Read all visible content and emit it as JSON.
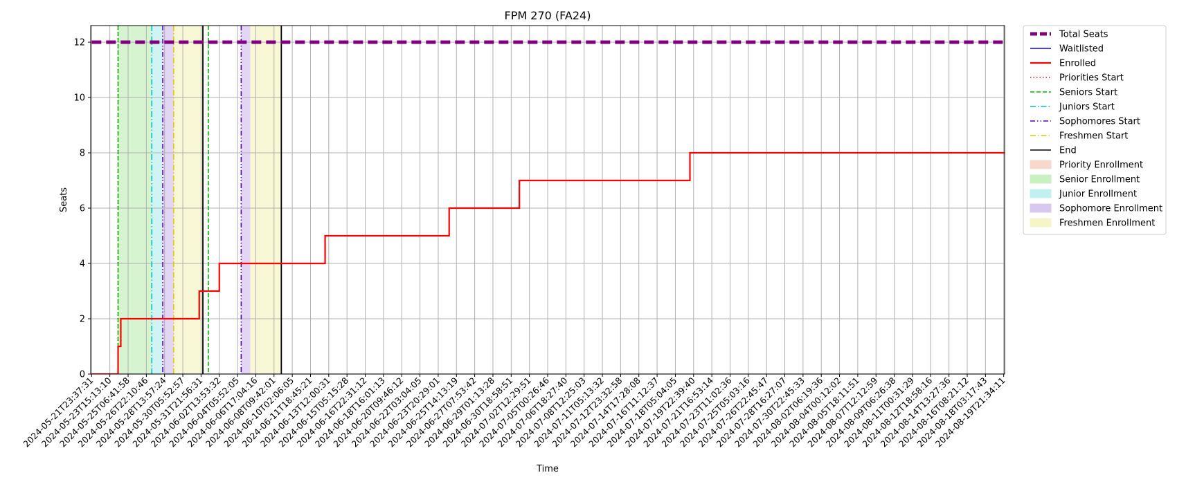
{
  "chart_data": {
    "type": "line",
    "title": "FPM 270 (FA24)",
    "xlabel": "Time",
    "ylabel": "Seats",
    "ylim": [
      0,
      12.6
    ],
    "yticks": [
      0,
      2,
      4,
      6,
      8,
      10,
      12
    ],
    "grid": true,
    "legend_position": "outside-right",
    "x_ticks": [
      "2024-05-21T23:37:31",
      "2024-05-23T15:13:10",
      "2024-05-25T06:41:58",
      "2024-05-26T22:10:46",
      "2024-05-28T13:57:24",
      "2024-05-30T05:52:57",
      "2024-05-31T21:56:31",
      "2024-06-02T13:53:32",
      "2024-06-04T05:52:05",
      "2024-06-06T17:04:16",
      "2024-06-08T09:42:01",
      "2024-06-10T02:06:05",
      "2024-06-11T18:45:21",
      "2024-06-13T12:00:31",
      "2024-06-15T05:15:28",
      "2024-06-16T22:31:12",
      "2024-06-18T16:01:13",
      "2024-06-20T09:46:12",
      "2024-06-22T03:04:05",
      "2024-06-23T20:29:01",
      "2024-06-25T14:13:19",
      "2024-06-27T07:53:42",
      "2024-06-29T01:13:28",
      "2024-06-30T18:58:51",
      "2024-07-02T12:29:51",
      "2024-07-05T00:26:46",
      "2024-07-06T18:27:40",
      "2024-07-08T12:25:03",
      "2024-07-11T05:13:32",
      "2024-07-12T23:32:58",
      "2024-07-14T17:28:08",
      "2024-07-16T11:12:37",
      "2024-07-18T05:04:05",
      "2024-07-19T22:39:40",
      "2024-07-21T16:53:14",
      "2024-07-23T11:02:36",
      "2024-07-25T05:03:16",
      "2024-07-26T22:45:47",
      "2024-07-28T16:27:07",
      "2024-07-30T22:45:33",
      "2024-08-02T06:19:36",
      "2024-08-04T00:12:02",
      "2024-08-05T18:11:51",
      "2024-08-07T12:12:59",
      "2024-08-09T06:26:38",
      "2024-08-11T00:31:29",
      "2024-08-12T18:58:16",
      "2024-08-14T13:27:36",
      "2024-08-16T08:21:12",
      "2024-08-18T03:17:43",
      "2024-08-19T21:34:11"
    ],
    "series": [
      {
        "name": "Total Seats",
        "style": "dashed",
        "color": "#800080",
        "x": [
          0,
          50.3
        ],
        "y": [
          12,
          12
        ]
      },
      {
        "name": "Waitlisted",
        "style": "solid",
        "color": "#0000ff",
        "x": [
          0,
          50.3
        ],
        "y": [
          0,
          0
        ]
      },
      {
        "name": "Enrolled",
        "style": "step",
        "color": "#ff0000",
        "x": [
          0,
          1.45,
          1.6,
          5.9,
          7.0,
          12.8,
          19.6,
          23.45,
          32.8,
          50.3
        ],
        "y": [
          0,
          1,
          2,
          3,
          4,
          5,
          6,
          7,
          8,
          8
        ]
      }
    ],
    "vlines": [
      {
        "name": "Priorities Start",
        "style": "dotted",
        "color": "#ff0000",
        "x": 1.45
      },
      {
        "name": "Seniors Start",
        "style": "dashed",
        "color": "#00bb00",
        "x": 1.45
      },
      {
        "name": "Juniors Start",
        "style": "dashdot",
        "color": "#00bfbf",
        "x": 3.3
      },
      {
        "name": "Sophomores Start",
        "style": "dashdotdot",
        "color": "#5500cc",
        "x": 3.9
      },
      {
        "name": "Freshmen Start",
        "style": "dashdot",
        "color": "#ddcc00",
        "x": 4.5
      },
      {
        "name": "End",
        "style": "solid",
        "color": "#000000",
        "x": 6.1
      },
      {
        "name": "Seniors Start",
        "style": "dashed",
        "color": "#00bb00",
        "x": 6.4
      },
      {
        "name": "Sophomores Start",
        "style": "dashdotdot",
        "color": "#5500cc",
        "x": 8.2
      },
      {
        "name": "End",
        "style": "solid",
        "color": "#000000",
        "x": 10.4
      }
    ],
    "regions": [
      {
        "name": "Senior Enrollment",
        "color": "#c8f0c0",
        "x0": 1.45,
        "x1": 3.3
      },
      {
        "name": "Junior Enrollment",
        "color": "#c0f0f0",
        "x0": 3.3,
        "x1": 3.9
      },
      {
        "name": "Sophomore Enrollment",
        "color": "#d8c8f0",
        "x0": 3.9,
        "x1": 4.5
      },
      {
        "name": "Freshmen Enrollment",
        "color": "#f5f5c8",
        "x0": 4.5,
        "x1": 6.1
      },
      {
        "name": "Sophomore Enrollment",
        "color": "#d8c8f0",
        "x0": 8.2,
        "x1": 8.7
      },
      {
        "name": "Freshmen Enrollment",
        "color": "#f5f5c8",
        "x0": 8.7,
        "x1": 10.4
      }
    ],
    "legend": [
      {
        "label": "Total Seats",
        "kind": "line",
        "style": "dashed-thick",
        "color": "#800080"
      },
      {
        "label": "Waitlisted",
        "kind": "line",
        "style": "solid",
        "color": "#0000ff"
      },
      {
        "label": "Enrolled",
        "kind": "line",
        "style": "solid-thick",
        "color": "#ff0000"
      },
      {
        "label": "Priorities Start",
        "kind": "line",
        "style": "dotted",
        "color": "#ff0000"
      },
      {
        "label": "Seniors Start",
        "kind": "line",
        "style": "dashed",
        "color": "#00bb00"
      },
      {
        "label": "Juniors Start",
        "kind": "line",
        "style": "dashdot",
        "color": "#00bfbf"
      },
      {
        "label": "Sophomores Start",
        "kind": "line",
        "style": "dashdotdot",
        "color": "#5500cc"
      },
      {
        "label": "Freshmen Start",
        "kind": "line",
        "style": "dashdot",
        "color": "#ddcc00"
      },
      {
        "label": "End",
        "kind": "line",
        "style": "solid",
        "color": "#000000"
      },
      {
        "label": "Priority Enrollment",
        "kind": "patch",
        "color": "#f8d8cc"
      },
      {
        "label": "Senior Enrollment",
        "kind": "patch",
        "color": "#c8f0c0"
      },
      {
        "label": "Junior Enrollment",
        "kind": "patch",
        "color": "#c0f0f0"
      },
      {
        "label": "Sophomore Enrollment",
        "kind": "patch",
        "color": "#d8c8f0"
      },
      {
        "label": "Freshmen Enrollment",
        "kind": "patch",
        "color": "#f5f5c8"
      }
    ]
  }
}
